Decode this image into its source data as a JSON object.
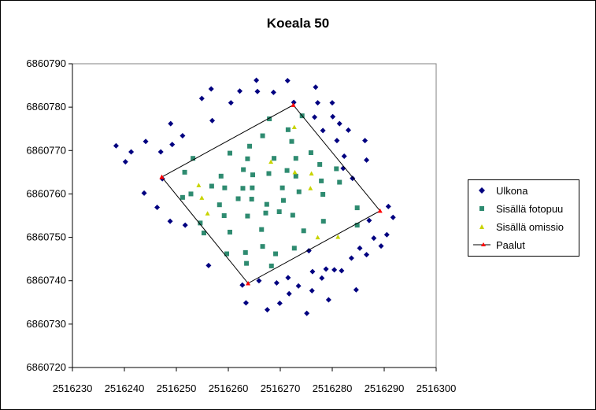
{
  "chart_data": {
    "type": "scatter",
    "title": "Koeala 50",
    "xlabel": "",
    "ylabel": "",
    "xlim": [
      2516230,
      2516300
    ],
    "ylim": [
      6860720,
      6860790
    ],
    "x_ticks": [
      "2516230",
      "2516240",
      "2516250",
      "2516260",
      "2516270",
      "2516280",
      "2516290",
      "2516300"
    ],
    "y_ticks": [
      "6860790",
      "6860780",
      "6860770",
      "6860760",
      "6860750",
      "6860740",
      "6860730",
      "6860720"
    ],
    "grid": false,
    "legend_position": "right",
    "series": [
      {
        "name": "Ulkona",
        "color": "#000080",
        "marker": "diamond",
        "points": [
          [
            2516238.4,
            6860771.1
          ],
          [
            2516240.2,
            6860767.4
          ],
          [
            2516241.3,
            6860769.7
          ],
          [
            2516243.8,
            6860760.2
          ],
          [
            2516244.1,
            6860772.1
          ],
          [
            2516246.3,
            6860756.9
          ],
          [
            2516247,
            6860769.7
          ],
          [
            2516247.3,
            6860763.5
          ],
          [
            2516248.8,
            6860753.7
          ],
          [
            2516248.9,
            6860776.2
          ],
          [
            2516249.2,
            6860771.4
          ],
          [
            2516251.2,
            6860773.4
          ],
          [
            2516251.7,
            6860752.8
          ],
          [
            2516254.9,
            6860782
          ],
          [
            2516256.2,
            6860743.5
          ],
          [
            2516256.7,
            6860784.2
          ],
          [
            2516256.9,
            6860776.9
          ],
          [
            2516260.5,
            6860781
          ],
          [
            2516262.2,
            6860783.7
          ],
          [
            2516262.7,
            6860739
          ],
          [
            2516263.4,
            6860734.9
          ],
          [
            2516265.4,
            6860786.2
          ],
          [
            2516265.6,
            6860783.6
          ],
          [
            2516265.9,
            6860740
          ],
          [
            2516267.5,
            6860733.3
          ],
          [
            2516268.7,
            6860783.4
          ],
          [
            2516269.3,
            6860739.5
          ],
          [
            2516269.9,
            6860734.8
          ],
          [
            2516271.4,
            6860786.1
          ],
          [
            2516271.5,
            6860740.7
          ],
          [
            2516271.7,
            6860737
          ],
          [
            2516272.6,
            6860781.1
          ],
          [
            2516273.5,
            6860738.8
          ],
          [
            2516275.1,
            6860732.5
          ],
          [
            2516275.5,
            6860746.9
          ],
          [
            2516276.1,
            6860737.7
          ],
          [
            2516276.2,
            6860742.1
          ],
          [
            2516276.6,
            6860777.7
          ],
          [
            2516276.8,
            6860784.6
          ],
          [
            2516277.2,
            6860781
          ],
          [
            2516278,
            6860740.6
          ],
          [
            2516278.2,
            6860774.6
          ],
          [
            2516278.8,
            6860742.7
          ],
          [
            2516279.3,
            6860735.6
          ],
          [
            2516280,
            6860781
          ],
          [
            2516280.1,
            6860777.8
          ],
          [
            2516280.4,
            6860742.5
          ],
          [
            2516280.9,
            6860772.3
          ],
          [
            2516281.4,
            6860776.2
          ],
          [
            2516281.8,
            6860742.3
          ],
          [
            2516282.1,
            6860765.9
          ],
          [
            2516282.3,
            6860768.7
          ],
          [
            2516283.1,
            6860774.7
          ],
          [
            2516283.7,
            6860745.2
          ],
          [
            2516283.9,
            6860763.6
          ],
          [
            2516284.6,
            6860737.9
          ],
          [
            2516285.3,
            6860747.5
          ],
          [
            2516286.3,
            6860772.3
          ],
          [
            2516286.6,
            6860746
          ],
          [
            2516286.6,
            6860767.8
          ],
          [
            2516287.1,
            6860753.9
          ],
          [
            2516288,
            6860749.8
          ],
          [
            2516289.4,
            6860748
          ],
          [
            2516290.5,
            6860750.6
          ],
          [
            2516290.8,
            6860757.1
          ],
          [
            2516291.7,
            6860754.6
          ]
        ]
      },
      {
        "name": "Sisällä fotopuu",
        "color": "#2E8B70",
        "marker": "square",
        "points": [
          [
            2516251.2,
            6860759.2
          ],
          [
            2516251.6,
            6860765
          ],
          [
            2516252.8,
            6860760
          ],
          [
            2516253.2,
            6860768.2
          ],
          [
            2516254.6,
            6860753.3
          ],
          [
            2516255.3,
            6860751
          ],
          [
            2516256.8,
            6860761.8
          ],
          [
            2516258.3,
            6860757.5
          ],
          [
            2516258.6,
            6860764.1
          ],
          [
            2516259.2,
            6860755
          ],
          [
            2516259.3,
            6860761.4
          ],
          [
            2516259.7,
            6860746.2
          ],
          [
            2516260.3,
            6860751.2
          ],
          [
            2516260.3,
            6860769.4
          ],
          [
            2516261.9,
            6860758.9
          ],
          [
            2516262.8,
            6860761.3
          ],
          [
            2516262.9,
            6860765.6
          ],
          [
            2516263.3,
            6860746.5
          ],
          [
            2516263.5,
            6860744
          ],
          [
            2516263.7,
            6860754.9
          ],
          [
            2516263.7,
            6860768.1
          ],
          [
            2516264.1,
            6860771
          ],
          [
            2516264.5,
            6860758.8
          ],
          [
            2516264.6,
            6860761.4
          ],
          [
            2516264.7,
            6860764.4
          ],
          [
            2516266.4,
            6860751.8
          ],
          [
            2516266.6,
            6860747.9
          ],
          [
            2516266.6,
            6860773.4
          ],
          [
            2516267.2,
            6860755.6
          ],
          [
            2516267.4,
            6860757.6
          ],
          [
            2516267.8,
            6860764.7
          ],
          [
            2516267.9,
            6860777.3
          ],
          [
            2516268.3,
            6860743.4
          ],
          [
            2516268.8,
            6860768.2
          ],
          [
            2516269.1,
            6860746.2
          ],
          [
            2516269.8,
            6860755.9
          ],
          [
            2516270.4,
            6860761.4
          ],
          [
            2516270.6,
            6860758.5
          ],
          [
            2516271.3,
            6860765.4
          ],
          [
            2516271.5,
            6860774.8
          ],
          [
            2516272.2,
            6860772.1
          ],
          [
            2516272.4,
            6860755.1
          ],
          [
            2516272.7,
            6860747.5
          ],
          [
            2516273,
            6860764.1
          ],
          [
            2516273,
            6860768.2
          ],
          [
            2516273.6,
            6860760.5
          ],
          [
            2516274.2,
            6860778
          ],
          [
            2516274.5,
            6860751.5
          ],
          [
            2516275.9,
            6860769.5
          ],
          [
            2516277.6,
            6860766.8
          ],
          [
            2516277.9,
            6860763
          ],
          [
            2516278.2,
            6860759.9
          ],
          [
            2516278.3,
            6860753.7
          ],
          [
            2516280.8,
            6860765.8
          ],
          [
            2516281.4,
            6860762.7
          ],
          [
            2516284.8,
            6860756.8
          ],
          [
            2516284.8,
            6860752.8
          ]
        ]
      },
      {
        "name": "Sisällä omissio",
        "color": "#C8D400",
        "marker": "triangle",
        "points": [
          [
            2516254.3,
            6860762
          ],
          [
            2516254.9,
            6860759.1
          ],
          [
            2516256,
            6860755.5
          ],
          [
            2516268.2,
            6860767.4
          ],
          [
            2516272.7,
            6860775.4
          ],
          [
            2516272.8,
            6860765
          ],
          [
            2516275.8,
            6860761.3
          ],
          [
            2516276,
            6860764.7
          ],
          [
            2516277.2,
            6860750
          ],
          [
            2516281.1,
            6860750.1
          ]
        ]
      },
      {
        "name": "Paalut",
        "color": "#000000",
        "marker_color": "#FF0000",
        "marker": "triangle",
        "line": true,
        "points": [
          [
            2516247.2,
            6860763.9
          ],
          [
            2516272.5,
            6860780.5
          ],
          [
            2516289.2,
            6860756.1
          ],
          [
            2516263.8,
            6860739.4
          ],
          [
            2516247.2,
            6860763.9
          ]
        ]
      }
    ]
  }
}
